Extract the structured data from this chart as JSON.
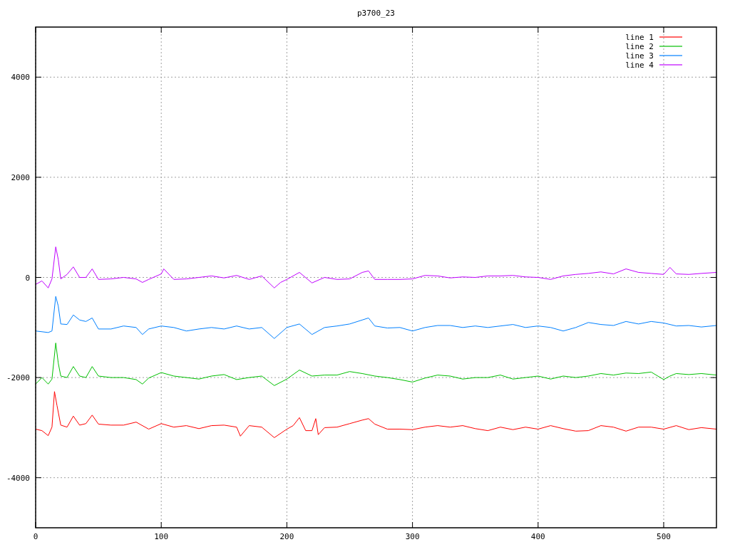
{
  "chart_data": {
    "type": "line",
    "title": "p3700_23",
    "xlim": [
      0,
      542
    ],
    "xticks": [
      0,
      100,
      200,
      300,
      400,
      500
    ],
    "ylim": [
      -5000,
      5000
    ],
    "yticks": [
      -4000,
      -2000,
      0,
      2000,
      4000
    ],
    "grid": true,
    "legend": "top right",
    "line_style": "solid",
    "series": [
      {
        "name": "line 1",
        "color": "#ff0000",
        "x": [
          0,
          5,
          10,
          13,
          15,
          17,
          20,
          25,
          30,
          35,
          40,
          45,
          50,
          60,
          70,
          80,
          90,
          100,
          110,
          120,
          130,
          140,
          150,
          160,
          163,
          170,
          180,
          190,
          200,
          205,
          210,
          215,
          220,
          223,
          225,
          230,
          240,
          250,
          260,
          265,
          270,
          280,
          290,
          300,
          310,
          320,
          330,
          340,
          350,
          360,
          370,
          380,
          390,
          400,
          410,
          420,
          430,
          440,
          450,
          460,
          470,
          480,
          490,
          500,
          510,
          520,
          530,
          542
        ],
        "values": [
          -3030,
          -3060,
          -3160,
          -2990,
          -2280,
          -2560,
          -2950,
          -2990,
          -2770,
          -2950,
          -2920,
          -2750,
          -2930,
          -2950,
          -2950,
          -2890,
          -3030,
          -2920,
          -2990,
          -2960,
          -3020,
          -2960,
          -2950,
          -2990,
          -3170,
          -2960,
          -2990,
          -3200,
          -3030,
          -2960,
          -2800,
          -3060,
          -3060,
          -2820,
          -3140,
          -3000,
          -2990,
          -2920,
          -2850,
          -2820,
          -2930,
          -3030,
          -3030,
          -3040,
          -2990,
          -2960,
          -2990,
          -2960,
          -3020,
          -3060,
          -2990,
          -3040,
          -2990,
          -3030,
          -2960,
          -3020,
          -3070,
          -3060,
          -2960,
          -2990,
          -3070,
          -2990,
          -2990,
          -3030,
          -2960,
          -3040,
          -3000,
          -3030
        ]
      },
      {
        "name": "line 2",
        "color": "#00c000",
        "x": [
          0,
          5,
          10,
          13,
          16,
          18,
          20,
          25,
          30,
          35,
          40,
          45,
          50,
          60,
          70,
          80,
          85,
          90,
          100,
          110,
          120,
          130,
          140,
          150,
          160,
          170,
          180,
          190,
          200,
          210,
          220,
          230,
          240,
          250,
          260,
          270,
          280,
          290,
          300,
          310,
          320,
          330,
          340,
          350,
          360,
          370,
          380,
          390,
          400,
          410,
          420,
          430,
          440,
          450,
          460,
          470,
          480,
          490,
          500,
          505,
          510,
          520,
          530,
          542
        ],
        "values": [
          -2130,
          -2000,
          -2130,
          -2030,
          -1310,
          -1710,
          -1970,
          -2000,
          -1780,
          -1970,
          -2000,
          -1780,
          -1970,
          -2000,
          -2000,
          -2040,
          -2130,
          -2010,
          -1900,
          -1970,
          -2000,
          -2030,
          -1970,
          -1940,
          -2040,
          -2000,
          -1970,
          -2160,
          -2030,
          -1850,
          -1970,
          -1950,
          -1950,
          -1880,
          -1920,
          -1970,
          -2000,
          -2040,
          -2090,
          -2010,
          -1950,
          -1970,
          -2030,
          -2000,
          -2000,
          -1950,
          -2030,
          -2000,
          -1970,
          -2030,
          -1970,
          -2000,
          -1970,
          -1920,
          -1950,
          -1910,
          -1920,
          -1890,
          -2040,
          -1970,
          -1920,
          -1940,
          -1920,
          -1950
        ]
      },
      {
        "name": "line 3",
        "color": "#0080ff",
        "x": [
          0,
          10,
          13,
          16,
          18,
          20,
          25,
          30,
          35,
          40,
          45,
          50,
          60,
          70,
          80,
          85,
          90,
          100,
          110,
          120,
          130,
          140,
          150,
          160,
          170,
          180,
          190,
          200,
          210,
          220,
          230,
          240,
          250,
          260,
          265,
          270,
          280,
          290,
          300,
          310,
          320,
          330,
          340,
          350,
          360,
          370,
          380,
          390,
          400,
          410,
          420,
          430,
          440,
          450,
          460,
          470,
          480,
          490,
          500,
          510,
          520,
          530,
          542
        ],
        "values": [
          -1070,
          -1100,
          -1070,
          -380,
          -570,
          -930,
          -940,
          -750,
          -850,
          -880,
          -810,
          -1030,
          -1030,
          -970,
          -1000,
          -1140,
          -1030,
          -970,
          -1000,
          -1070,
          -1030,
          -1000,
          -1030,
          -970,
          -1030,
          -1000,
          -1220,
          -1000,
          -930,
          -1140,
          -1000,
          -970,
          -930,
          -850,
          -810,
          -970,
          -1010,
          -1000,
          -1070,
          -1000,
          -960,
          -960,
          -1000,
          -970,
          -1000,
          -970,
          -940,
          -1000,
          -970,
          -1000,
          -1070,
          -1000,
          -900,
          -940,
          -960,
          -880,
          -930,
          -880,
          -910,
          -970,
          -960,
          -990,
          -960
        ]
      },
      {
        "name": "line 4",
        "color": "#c000ff",
        "x": [
          0,
          5,
          10,
          13,
          16,
          18,
          20,
          25,
          30,
          35,
          40,
          45,
          50,
          60,
          70,
          80,
          85,
          90,
          100,
          102,
          110,
          120,
          130,
          140,
          150,
          160,
          170,
          180,
          190,
          195,
          200,
          210,
          220,
          230,
          240,
          250,
          260,
          265,
          270,
          280,
          290,
          300,
          310,
          320,
          330,
          340,
          350,
          360,
          370,
          380,
          390,
          400,
          410,
          420,
          430,
          440,
          450,
          460,
          470,
          480,
          490,
          500,
          505,
          510,
          520,
          530,
          542
        ],
        "values": [
          -140,
          -70,
          -210,
          -30,
          610,
          360,
          -30,
          60,
          210,
          0,
          0,
          170,
          -40,
          -30,
          0,
          -30,
          -100,
          -40,
          70,
          170,
          -40,
          -30,
          0,
          30,
          -10,
          40,
          -40,
          30,
          -210,
          -100,
          -40,
          100,
          -110,
          0,
          -40,
          -30,
          100,
          130,
          -40,
          -40,
          -40,
          -30,
          40,
          30,
          -10,
          10,
          0,
          30,
          30,
          40,
          10,
          0,
          -40,
          30,
          60,
          80,
          110,
          70,
          170,
          100,
          80,
          60,
          200,
          70,
          60,
          80,
          100
        ]
      }
    ]
  }
}
